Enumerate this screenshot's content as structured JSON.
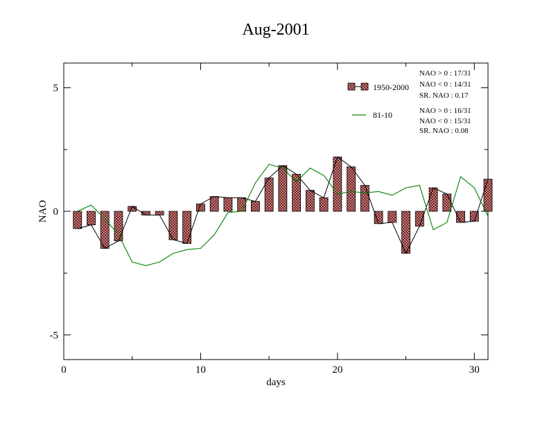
{
  "chart_data": {
    "type": "bar",
    "title": "Aug-2001",
    "xlabel": "days",
    "ylabel": "NAO",
    "xlim": [
      0,
      31
    ],
    "ylim": [
      -6,
      6
    ],
    "x_ticks": [
      0,
      10,
      20,
      30
    ],
    "y_ticks": [
      5,
      0,
      -5
    ],
    "x_tick_labels": [
      "0",
      "10",
      "20",
      "30"
    ],
    "y_tick_labels": [
      "5",
      "0",
      "-5"
    ],
    "x": [
      1,
      2,
      3,
      4,
      5,
      6,
      7,
      8,
      9,
      10,
      11,
      12,
      13,
      14,
      15,
      16,
      17,
      18,
      19,
      20,
      21,
      22,
      23,
      24,
      25,
      26,
      27,
      28,
      29,
      30,
      31
    ],
    "series": [
      {
        "name": "1950-2000",
        "style": "bars-with-line",
        "bar_color": "#f08080",
        "line_color": "#000000",
        "values": [
          -0.7,
          -0.55,
          -1.5,
          -1.2,
          0.2,
          -0.15,
          -0.15,
          -1.15,
          -1.3,
          0.3,
          0.6,
          0.55,
          0.55,
          0.4,
          1.35,
          1.85,
          1.5,
          0.85,
          0.55,
          2.2,
          1.8,
          1.05,
          -0.5,
          -0.45,
          -1.7,
          -0.6,
          0.95,
          0.7,
          -0.45,
          -0.4,
          1.3
        ]
      },
      {
        "name": "81-10",
        "style": "line",
        "line_color": "#008000",
        "values": [
          0.0,
          0.25,
          -0.3,
          -0.95,
          -2.05,
          -2.2,
          -2.05,
          -1.7,
          -1.55,
          -1.5,
          -0.95,
          -0.05,
          0.0,
          1.15,
          1.9,
          1.75,
          1.2,
          1.75,
          1.45,
          0.7,
          0.8,
          0.75,
          0.8,
          0.65,
          0.95,
          1.05,
          -0.75,
          -0.45,
          1.4,
          0.95,
          -0.2
        ]
      }
    ],
    "legend": {
      "placement": "top-right",
      "entries": [
        {
          "label": "1950-2000",
          "series": 0
        },
        {
          "label": "81-10",
          "series": 1
        }
      ]
    },
    "annotations": {
      "block1": [
        "NAO > 0 :  17/31",
        "NAO < 0 :  14/31",
        "SR. NAO :   0.17"
      ],
      "block2": [
        "NAO > 0 :  16/31",
        "NAO < 0 :  15/31",
        "SR. NAO :   0.08"
      ]
    },
    "grid": false
  }
}
